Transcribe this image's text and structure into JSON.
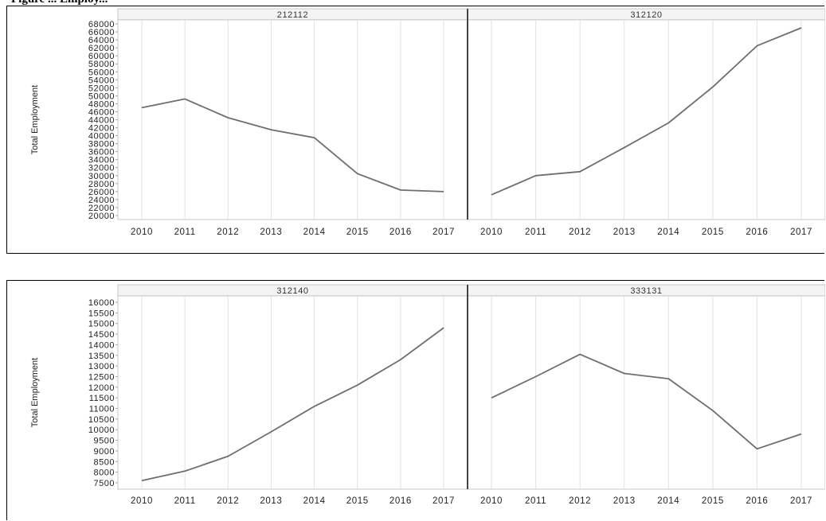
{
  "caption": "Figure ... Employ...",
  "chart_data": [
    {
      "type": "line",
      "panel_title": "212112",
      "ylabel": "Total Employment",
      "x": [
        2010,
        2011,
        2012,
        2013,
        2014,
        2015,
        2016,
        2017
      ],
      "values": [
        47000,
        49200,
        44500,
        41500,
        39500,
        30500,
        26400,
        26000
      ],
      "ylim": [
        19000,
        69000
      ],
      "yticks": [
        20000,
        22000,
        24000,
        26000,
        28000,
        30000,
        32000,
        34000,
        36000,
        38000,
        40000,
        42000,
        44000,
        46000,
        48000,
        50000,
        52000,
        54000,
        56000,
        58000,
        60000,
        62000,
        64000,
        66000,
        68000
      ]
    },
    {
      "type": "line",
      "panel_title": "312120",
      "ylabel": "Total Employment",
      "x": [
        2010,
        2011,
        2012,
        2013,
        2014,
        2015,
        2016,
        2017
      ],
      "values": [
        25200,
        30000,
        31000,
        37000,
        43200,
        52200,
        62500,
        67000
      ],
      "ylim": [
        19000,
        69000
      ],
      "yticks": [
        20000,
        22000,
        24000,
        26000,
        28000,
        30000,
        32000,
        34000,
        36000,
        38000,
        40000,
        42000,
        44000,
        46000,
        48000,
        50000,
        52000,
        54000,
        56000,
        58000,
        60000,
        62000,
        64000,
        66000,
        68000
      ]
    },
    {
      "type": "line",
      "panel_title": "312140",
      "ylabel": "Total Employment",
      "x": [
        2010,
        2011,
        2012,
        2013,
        2014,
        2015,
        2016,
        2017
      ],
      "values": [
        7600,
        8050,
        8750,
        9900,
        11100,
        12100,
        13300,
        14800
      ],
      "ylim": [
        7200,
        16300
      ],
      "yticks": [
        7500,
        8000,
        8500,
        9000,
        9500,
        10000,
        10500,
        11000,
        11500,
        12000,
        12500,
        13000,
        13500,
        14000,
        14500,
        15000,
        15500,
        16000
      ]
    },
    {
      "type": "line",
      "panel_title": "333131",
      "ylabel": "Total Employment",
      "x": [
        2010,
        2011,
        2012,
        2013,
        2014,
        2015,
        2016,
        2017
      ],
      "values": [
        11500,
        12500,
        13550,
        12650,
        12400,
        10900,
        9100,
        9800
      ],
      "ylim": [
        7200,
        16300
      ],
      "yticks": [
        7500,
        8000,
        8500,
        9000,
        9500,
        10000,
        10500,
        11000,
        11500,
        12000,
        12500,
        13000,
        13500,
        14000,
        14500,
        15000,
        15500,
        16000
      ]
    }
  ]
}
